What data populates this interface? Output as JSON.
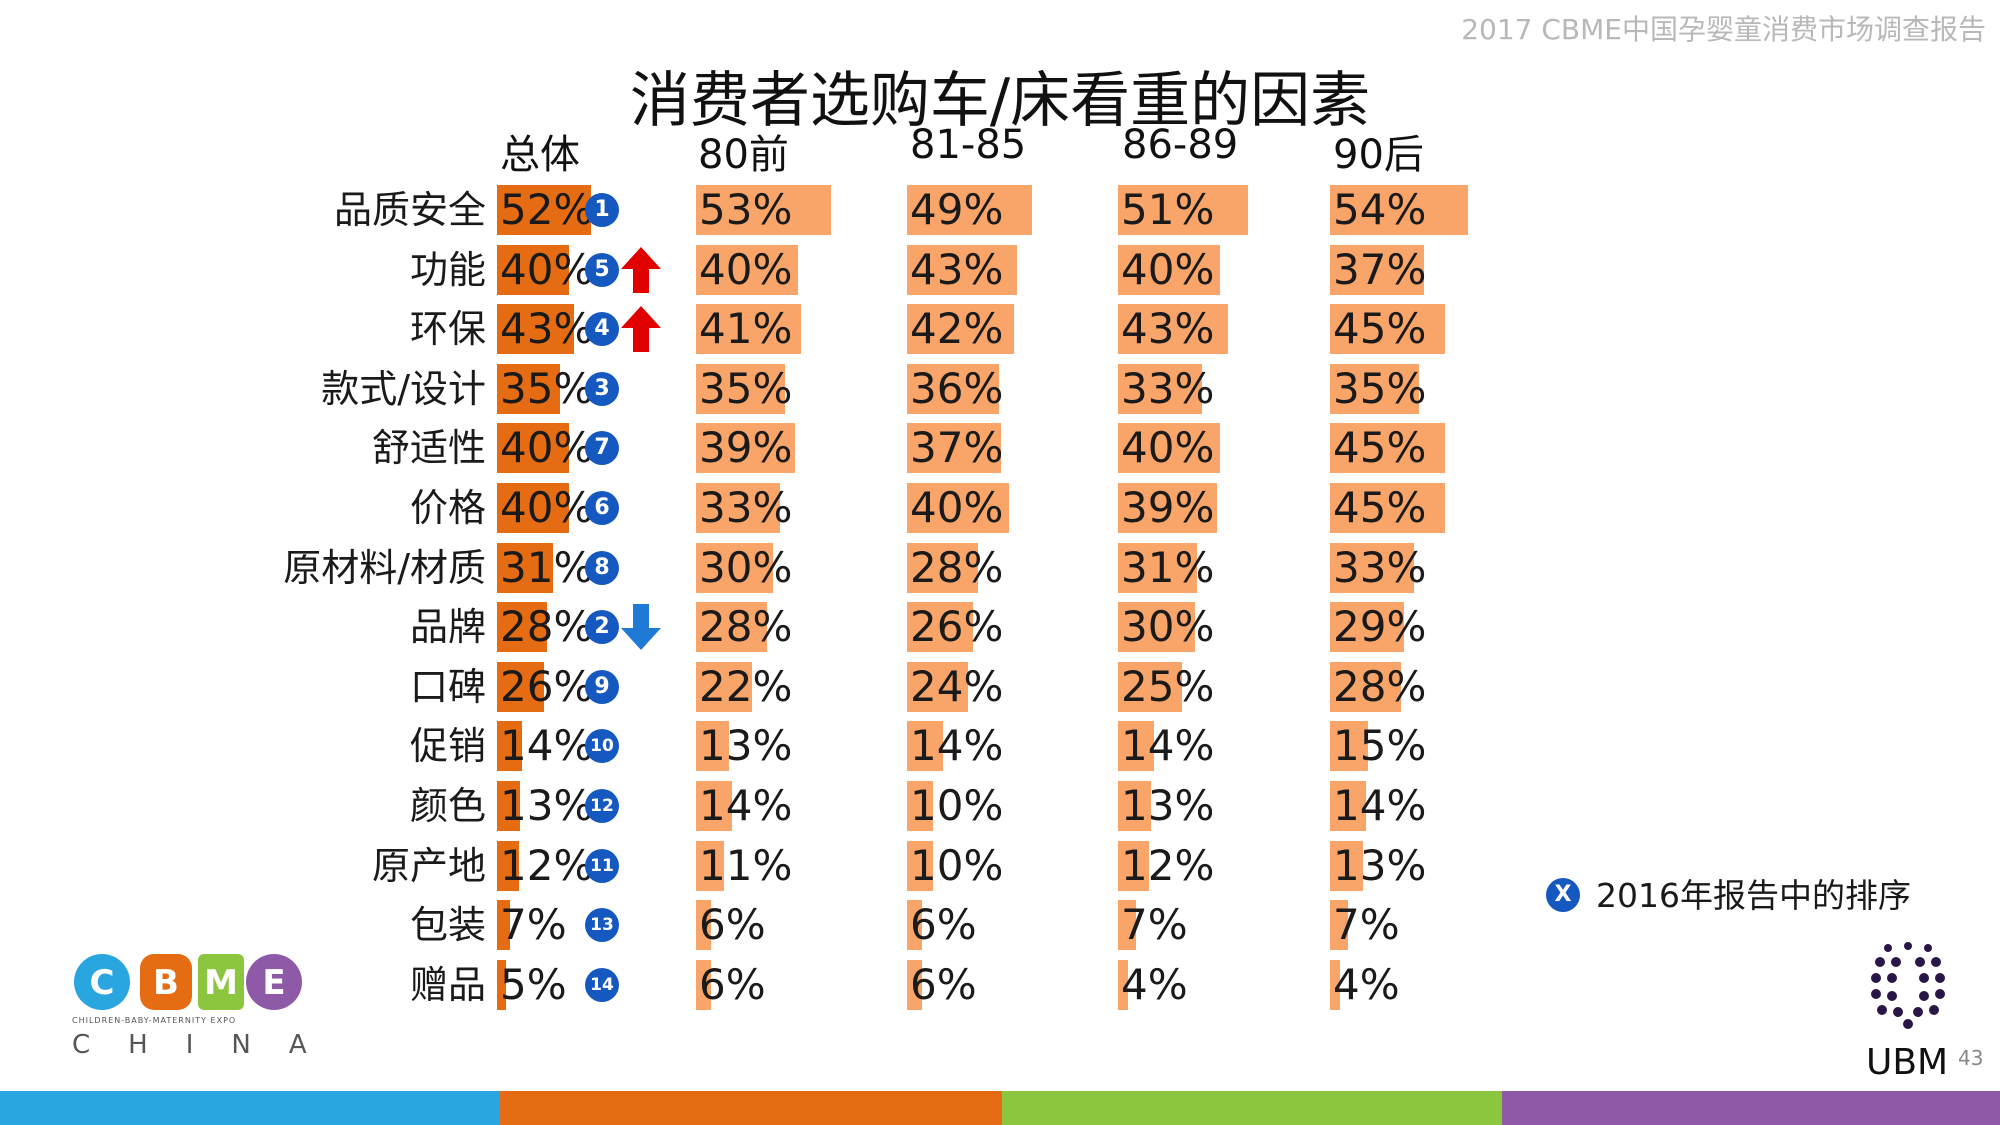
{
  "report_tag": "2017 CBME中国孕婴童消费市场调查报告",
  "page_number": "43",
  "colors": {
    "total_bar": "#e56c12",
    "group_bar": "#f9a56a",
    "rank_badge": "#1558c0",
    "arrow_up": "#e00000",
    "arrow_down": "#1f7ad6",
    "footer": [
      "#29a6e0",
      "#e56c12",
      "#8cc63f",
      "#8e5aa8"
    ]
  },
  "legend": {
    "badge": "X",
    "text": "2016年报告中的排序"
  },
  "logos": {
    "cbme_letters": [
      "C",
      "B",
      "M",
      "E"
    ],
    "cbme_sub": "CHILDREN-BABY-MATERNITY EXPO",
    "cbme_china": "CHINA",
    "ubm": "UBM"
  },
  "chart_data": {
    "type": "bar",
    "orientation": "horizontal",
    "title": "消费者选购车/床看重的因素",
    "series_names": [
      "总体",
      "80前",
      "81-85",
      "86-89",
      "90后"
    ],
    "categories": [
      "品质安全",
      "功能",
      "环保",
      "款式/设计",
      "舒适性",
      "价格",
      "原材料/材质",
      "品牌",
      "口碑",
      "促销",
      "颜色",
      "原产地",
      "包装",
      "赠品"
    ],
    "rows": [
      {
        "label": "品质安全",
        "values": [
          52,
          53,
          49,
          51,
          54
        ],
        "rank_2016": "1",
        "trend": ""
      },
      {
        "label": "功能",
        "values": [
          40,
          40,
          43,
          40,
          37
        ],
        "rank_2016": "5",
        "trend": "up"
      },
      {
        "label": "环保",
        "values": [
          43,
          41,
          42,
          43,
          45
        ],
        "rank_2016": "4",
        "trend": "up"
      },
      {
        "label": "款式/设计",
        "values": [
          35,
          35,
          36,
          33,
          35
        ],
        "rank_2016": "3",
        "trend": ""
      },
      {
        "label": "舒适性",
        "values": [
          40,
          39,
          37,
          40,
          45
        ],
        "rank_2016": "7",
        "trend": ""
      },
      {
        "label": "价格",
        "values": [
          40,
          33,
          40,
          39,
          45
        ],
        "rank_2016": "6",
        "trend": ""
      },
      {
        "label": "原材料/材质",
        "values": [
          31,
          30,
          28,
          31,
          33
        ],
        "rank_2016": "8",
        "trend": ""
      },
      {
        "label": "品牌",
        "values": [
          28,
          28,
          26,
          30,
          29
        ],
        "rank_2016": "2",
        "trend": "down"
      },
      {
        "label": "口碑",
        "values": [
          26,
          22,
          24,
          25,
          28
        ],
        "rank_2016": "9",
        "trend": ""
      },
      {
        "label": "促销",
        "values": [
          14,
          13,
          14,
          14,
          15
        ],
        "rank_2016": "10",
        "trend": ""
      },
      {
        "label": "颜色",
        "values": [
          13,
          14,
          10,
          13,
          14
        ],
        "rank_2016": "12",
        "trend": ""
      },
      {
        "label": "原产地",
        "values": [
          12,
          11,
          10,
          12,
          13
        ],
        "rank_2016": "11",
        "trend": ""
      },
      {
        "label": "包装",
        "values": [
          7,
          6,
          6,
          7,
          7
        ],
        "rank_2016": "13",
        "trend": ""
      },
      {
        "label": "赠品",
        "values": [
          5,
          6,
          6,
          4,
          4
        ],
        "rank_2016": "14",
        "trend": ""
      }
    ],
    "value_suffix": "%",
    "xlim": [
      0,
      100
    ]
  }
}
